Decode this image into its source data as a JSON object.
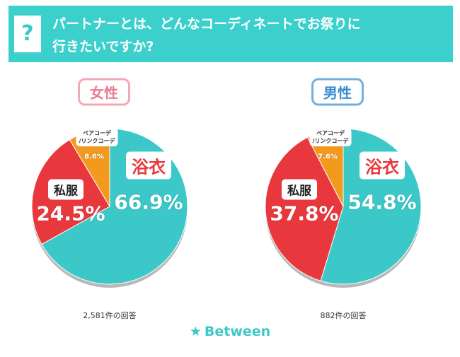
{
  "header": {
    "icon": "?",
    "question": "パートナーとは、どんなコーディネートでお祭りに\n行きたいですか?"
  },
  "chart_data": [
    {
      "type": "pie",
      "title": "女性",
      "categories": [
        "浴衣",
        "私服",
        "ペアコーデ\n/リンクコーデ"
      ],
      "values": [
        66.9,
        24.5,
        8.6
      ],
      "value_labels": [
        "66.9%",
        "24.5%",
        "8.6%"
      ],
      "colors": [
        "#3cc8c8",
        "#e8383d",
        "#f39a1e"
      ],
      "note": "2,581件の回答"
    },
    {
      "type": "pie",
      "title": "男性",
      "categories": [
        "浴衣",
        "私服",
        "ペアコーデ\n/リンクコーデ"
      ],
      "values": [
        54.8,
        37.8,
        7.6
      ],
      "value_labels": [
        "54.8%",
        "37.8%",
        "7.6%"
      ],
      "colors": [
        "#3cc8c8",
        "#e8383d",
        "#f39a1e"
      ],
      "note": "882件の回答"
    }
  ],
  "footer": {
    "brand": "Between"
  }
}
